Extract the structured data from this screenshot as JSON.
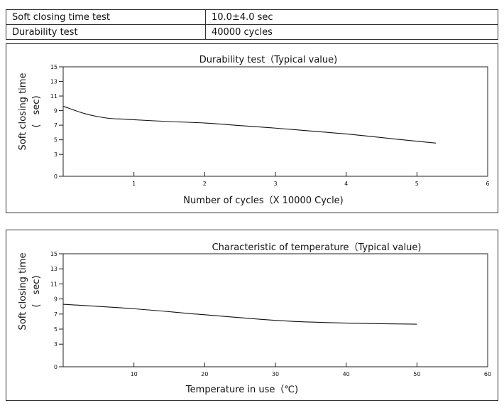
{
  "specs": [
    {
      "label": "Soft closing time test",
      "value": "10.0±4.0 sec"
    },
    {
      "label": "Durability test",
      "value": "40000 cycles"
    }
  ],
  "chart_data": [
    {
      "type": "line",
      "title": "Durability test（Typical value)",
      "xlabel": "Number of cycles（X 10000 Cycle)",
      "ylabel_line1": "Soft closing time",
      "ylabel_line2": "(　sec)",
      "xlim": [
        0,
        6
      ],
      "ylim": [
        0,
        15
      ],
      "xticks": [
        1,
        2,
        3,
        4,
        5,
        6
      ],
      "yticks": [
        0,
        3,
        5,
        7,
        9,
        11,
        13,
        15
      ],
      "series": [
        {
          "name": "Soft closing time",
          "x": [
            0,
            0.3,
            0.6,
            0.9,
            1.5,
            2.0,
            2.5,
            3.0,
            3.5,
            4.0,
            4.5,
            5.0,
            5.27
          ],
          "y": [
            9.6,
            8.6,
            8.0,
            7.8,
            7.5,
            7.3,
            6.95,
            6.6,
            6.2,
            5.8,
            5.3,
            4.8,
            4.55
          ]
        }
      ]
    },
    {
      "type": "line",
      "title": "Characteristic of temperature（Typical value)",
      "xlabel": "Temperature in use（℃)",
      "ylabel_line1": "Soft closing time",
      "ylabel_line2": "(　sec)",
      "xlim": [
        0,
        60
      ],
      "ylim": [
        0,
        15
      ],
      "xticks": [
        10,
        20,
        30,
        40,
        50,
        60
      ],
      "yticks": [
        0,
        3,
        5,
        7,
        9,
        11,
        13,
        15
      ],
      "series": [
        {
          "name": "Soft closing time",
          "x": [
            0,
            10,
            20,
            31,
            40,
            50
          ],
          "y": [
            8.3,
            7.7,
            6.9,
            6.1,
            5.8,
            5.65
          ]
        }
      ]
    }
  ]
}
